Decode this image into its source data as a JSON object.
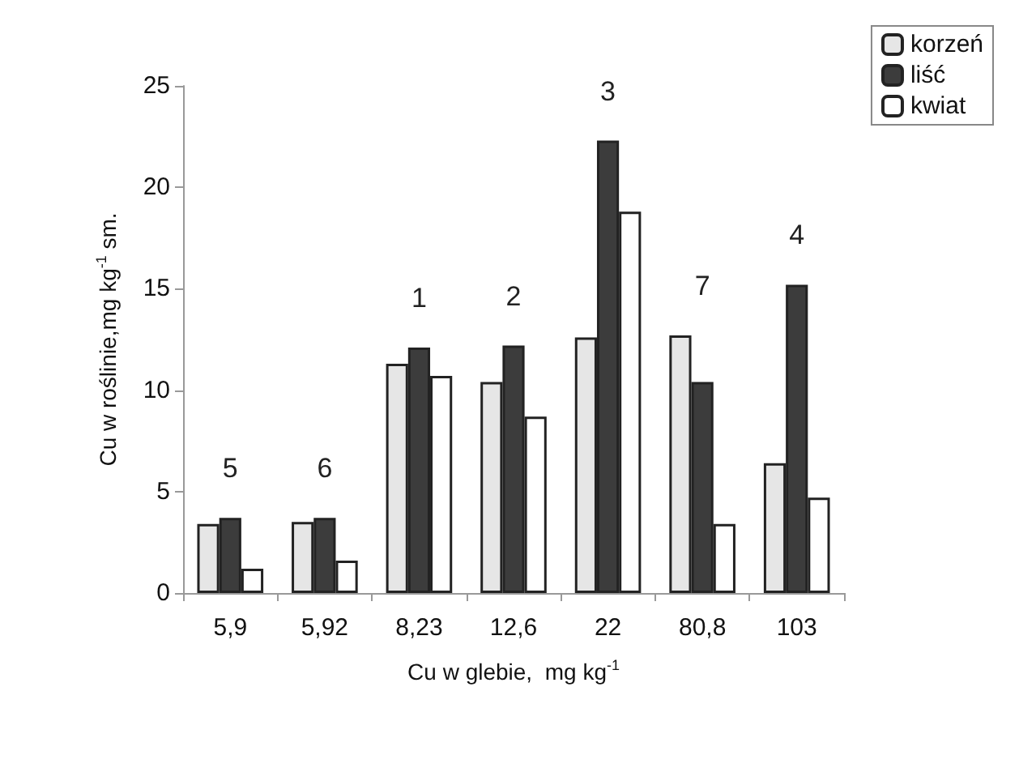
{
  "chart_data": {
    "type": "bar",
    "xlabel": "Cu w glebie,  mg kg$^{-1}$",
    "ylabel": "Cu w roślinie,mg kg$^{-1}$ sm.",
    "categories": [
      "5,9",
      "5,92",
      "8,23",
      "12,6",
      "22",
      "80,8",
      "103"
    ],
    "series": [
      {
        "name": "korzeń",
        "color": "#e6e6e6",
        "values": [
          3.4,
          3.5,
          11.3,
          10.4,
          12.6,
          12.7,
          6.4
        ]
      },
      {
        "name": "liść",
        "color": "#3c3c3c",
        "values": [
          3.7,
          3.7,
          12.1,
          12.2,
          22.3,
          10.4,
          15.2
        ]
      },
      {
        "name": "kwiat",
        "color": "#ffffff",
        "values": [
          1.2,
          1.6,
          10.7,
          8.7,
          18.8,
          3.4,
          4.7
        ]
      }
    ],
    "ylim": [
      0,
      25
    ],
    "yticks": [
      0,
      5,
      10,
      15,
      20,
      25
    ],
    "grid": false,
    "legend": "top right",
    "annotations": [
      "5",
      "6",
      "1",
      "2",
      "3",
      "7",
      "4"
    ]
  }
}
